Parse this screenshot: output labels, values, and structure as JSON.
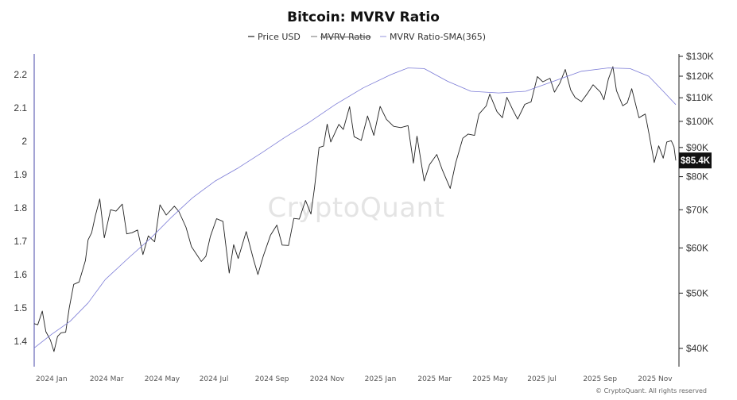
{
  "chart_data": {
    "type": "line",
    "title": "Bitcoin: MVRV Ratio",
    "legend": [
      {
        "name": "Price USD",
        "color": "#222222",
        "style": "solid"
      },
      {
        "name": "MVRV Ratio",
        "color": "#888888",
        "style": "strikethrough"
      },
      {
        "name": "MVRV Ratio-SMA(365)",
        "color": "#7b7bd6",
        "style": "thin"
      }
    ],
    "legend_position": "top",
    "grid": false,
    "watermark": "CryptoQuant",
    "copyright": "© CryptoQuant. All rights reserved",
    "x_ticks": [
      "2024 Jan",
      "2024 Mar",
      "2024 May",
      "2024 Jul",
      "2024 Sep",
      "2024 Nov",
      "2025 Jan",
      "2025 Mar",
      "2025 May",
      "2025 Jul",
      "2025 Sep",
      "2025 Nov"
    ],
    "x_range": [
      "2024-01-01",
      "2025-12-15"
    ],
    "left_axis": {
      "ticks": [
        "2.2",
        "2.1",
        "2",
        "1.9",
        "1.8",
        "1.7",
        "1.6",
        "1.5",
        "1.4"
      ],
      "ylim": [
        1.35,
        2.28
      ],
      "label": ""
    },
    "right_axis": {
      "ticks": [
        "$130K",
        "$120K",
        "$110K",
        "$100K",
        "$90K",
        "$80K",
        "$70K",
        "$60K",
        "$50K",
        "$40K"
      ],
      "ylim": [
        37000,
        130000
      ],
      "scale": "log",
      "label": ""
    },
    "last_value_label": "$85.4K",
    "last_value": 85400,
    "series": [
      {
        "name": "Price USD",
        "axis": "right",
        "points": [
          [
            "2024-01-01",
            44200
          ],
          [
            "2024-01-05",
            44000
          ],
          [
            "2024-01-10",
            46500
          ],
          [
            "2024-01-14",
            42800
          ],
          [
            "2024-01-19",
            41400
          ],
          [
            "2024-01-23",
            39500
          ],
          [
            "2024-01-27",
            42000
          ],
          [
            "2024-01-31",
            42600
          ],
          [
            "2024-02-05",
            42700
          ],
          [
            "2024-02-09",
            47100
          ],
          [
            "2024-02-14",
            51800
          ],
          [
            "2024-02-20",
            52300
          ],
          [
            "2024-02-27",
            57000
          ],
          [
            "2024-03-01",
            62000
          ],
          [
            "2024-03-05",
            63800
          ],
          [
            "2024-03-09",
            68300
          ],
          [
            "2024-03-14",
            73100
          ],
          [
            "2024-03-19",
            62500
          ],
          [
            "2024-03-26",
            70000
          ],
          [
            "2024-04-01",
            69600
          ],
          [
            "2024-04-08",
            71600
          ],
          [
            "2024-04-13",
            63500
          ],
          [
            "2024-04-19",
            63800
          ],
          [
            "2024-04-25",
            64500
          ],
          [
            "2024-05-01",
            58400
          ],
          [
            "2024-05-07",
            63000
          ],
          [
            "2024-05-14",
            61500
          ],
          [
            "2024-05-20",
            71400
          ],
          [
            "2024-05-27",
            68500
          ],
          [
            "2024-06-05",
            71000
          ],
          [
            "2024-06-10",
            69500
          ],
          [
            "2024-06-18",
            65200
          ],
          [
            "2024-06-24",
            60300
          ],
          [
            "2024-07-05",
            56800
          ],
          [
            "2024-07-10",
            58000
          ],
          [
            "2024-07-15",
            62800
          ],
          [
            "2024-07-22",
            67500
          ],
          [
            "2024-07-29",
            66800
          ],
          [
            "2024-08-05",
            54200
          ],
          [
            "2024-08-10",
            60800
          ],
          [
            "2024-08-15",
            57500
          ],
          [
            "2024-08-24",
            64100
          ],
          [
            "2024-09-01",
            57300
          ],
          [
            "2024-09-06",
            53900
          ],
          [
            "2024-09-12",
            58100
          ],
          [
            "2024-09-20",
            63200
          ],
          [
            "2024-09-27",
            65800
          ],
          [
            "2024-10-03",
            60700
          ],
          [
            "2024-10-10",
            60600
          ],
          [
            "2024-10-16",
            67600
          ],
          [
            "2024-10-22",
            67400
          ],
          [
            "2024-10-29",
            72700
          ],
          [
            "2024-11-04",
            68800
          ],
          [
            "2024-11-08",
            76500
          ],
          [
            "2024-11-13",
            90000
          ],
          [
            "2024-11-18",
            90500
          ],
          [
            "2024-11-22",
            98900
          ],
          [
            "2024-11-26",
            92000
          ],
          [
            "2024-12-05",
            98800
          ],
          [
            "2024-12-10",
            96800
          ],
          [
            "2024-12-17",
            106100
          ],
          [
            "2024-12-22",
            94000
          ],
          [
            "2024-12-30",
            92600
          ],
          [
            "2025-01-06",
            102200
          ],
          [
            "2025-01-13",
            94500
          ],
          [
            "2025-01-20",
            106200
          ],
          [
            "2025-01-27",
            100800
          ],
          [
            "2025-02-04",
            98000
          ],
          [
            "2025-02-12",
            97500
          ],
          [
            "2025-02-20",
            98300
          ],
          [
            "2025-02-26",
            84500
          ],
          [
            "2025-03-02",
            94200
          ],
          [
            "2025-03-10",
            78600
          ],
          [
            "2025-03-16",
            84000
          ],
          [
            "2025-03-24",
            87500
          ],
          [
            "2025-03-30",
            82400
          ],
          [
            "2025-04-08",
            76300
          ],
          [
            "2025-04-14",
            84500
          ],
          [
            "2025-04-22",
            93400
          ],
          [
            "2025-04-28",
            95000
          ],
          [
            "2025-05-05",
            94500
          ],
          [
            "2025-05-10",
            103000
          ],
          [
            "2025-05-18",
            106400
          ],
          [
            "2025-05-22",
            111600
          ],
          [
            "2025-05-30",
            104000
          ],
          [
            "2025-06-05",
            101500
          ],
          [
            "2025-06-10",
            110200
          ],
          [
            "2025-06-17",
            104500
          ],
          [
            "2025-06-22",
            100900
          ],
          [
            "2025-06-30",
            107100
          ],
          [
            "2025-07-07",
            108200
          ],
          [
            "2025-07-14",
            119800
          ],
          [
            "2025-07-20",
            117300
          ],
          [
            "2025-07-28",
            119000
          ],
          [
            "2025-08-02",
            112500
          ],
          [
            "2025-08-08",
            116700
          ],
          [
            "2025-08-14",
            123300
          ],
          [
            "2025-08-20",
            113500
          ],
          [
            "2025-08-25",
            110100
          ],
          [
            "2025-09-01",
            108300
          ],
          [
            "2025-09-08",
            112100
          ],
          [
            "2025-09-14",
            115900
          ],
          [
            "2025-09-22",
            112600
          ],
          [
            "2025-09-26",
            109100
          ],
          [
            "2025-10-01",
            118600
          ],
          [
            "2025-10-06",
            124700
          ],
          [
            "2025-10-10",
            113200
          ],
          [
            "2025-10-17",
            106500
          ],
          [
            "2025-10-22",
            107800
          ],
          [
            "2025-10-27",
            114100
          ],
          [
            "2025-11-04",
            101500
          ],
          [
            "2025-11-11",
            103000
          ],
          [
            "2025-11-15",
            95500
          ],
          [
            "2025-11-21",
            84700
          ],
          [
            "2025-11-26",
            90600
          ],
          [
            "2025-12-01",
            86200
          ],
          [
            "2025-12-05",
            92000
          ],
          [
            "2025-12-10",
            92500
          ],
          [
            "2025-12-13",
            90300
          ],
          [
            "2025-12-15",
            85400
          ]
        ]
      },
      {
        "name": "MVRV Ratio-SMA(365)",
        "axis": "left",
        "points": [
          [
            "2024-01-01",
            1.38
          ],
          [
            "2024-01-20",
            1.42
          ],
          [
            "2024-02-10",
            1.46
          ],
          [
            "2024-03-01",
            1.515
          ],
          [
            "2024-03-20",
            1.585
          ],
          [
            "2024-04-15",
            1.65
          ],
          [
            "2024-05-10",
            1.71
          ],
          [
            "2024-06-01",
            1.77
          ],
          [
            "2024-06-25",
            1.83
          ],
          [
            "2024-07-20",
            1.88
          ],
          [
            "2024-08-15",
            1.92
          ],
          [
            "2024-09-10",
            1.965
          ],
          [
            "2024-10-05",
            2.01
          ],
          [
            "2024-11-01",
            2.055
          ],
          [
            "2024-12-01",
            2.11
          ],
          [
            "2025-01-01",
            2.16
          ],
          [
            "2025-02-01",
            2.2
          ],
          [
            "2025-02-20",
            2.22
          ],
          [
            "2025-03-10",
            2.218
          ],
          [
            "2025-04-05",
            2.18
          ],
          [
            "2025-05-01",
            2.15
          ],
          [
            "2025-06-01",
            2.145
          ],
          [
            "2025-07-01",
            2.15
          ],
          [
            "2025-08-01",
            2.18
          ],
          [
            "2025-09-01",
            2.21
          ],
          [
            "2025-10-01",
            2.22
          ],
          [
            "2025-10-25",
            2.218
          ],
          [
            "2025-11-15",
            2.195
          ],
          [
            "2025-12-01",
            2.15
          ],
          [
            "2025-12-15",
            2.11
          ]
        ]
      }
    ]
  }
}
